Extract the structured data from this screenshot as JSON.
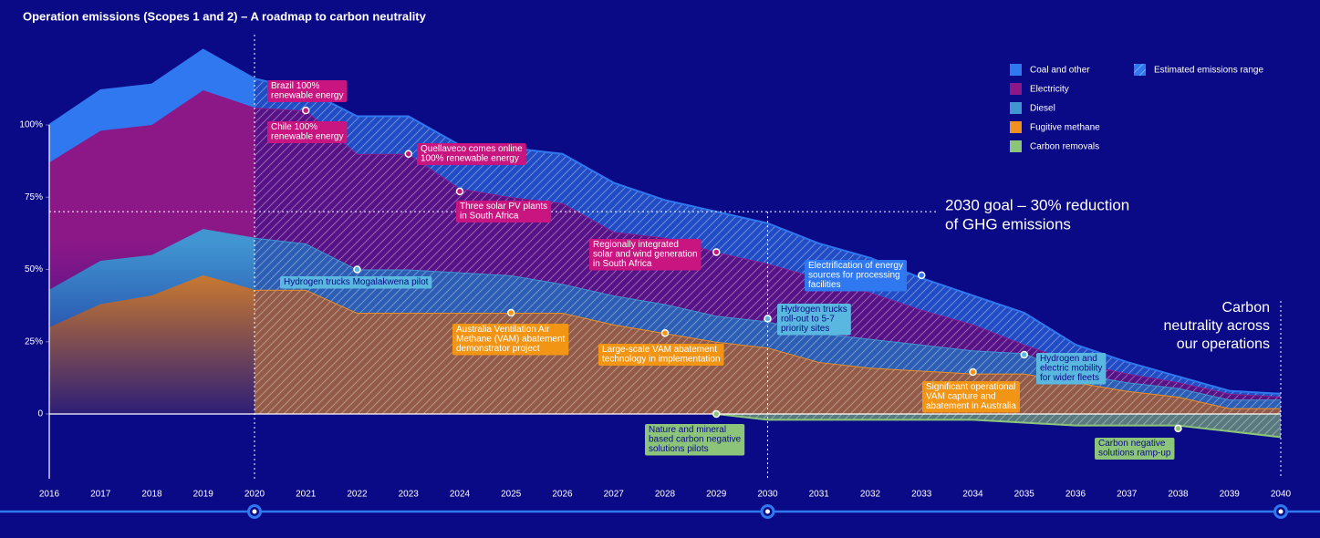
{
  "chart_data": {
    "type": "stacked-area",
    "title": "Operation emissions (Scopes 1 and 2) – A roadmap to carbon neutrality",
    "categories": [
      "2016",
      "2017",
      "2018",
      "2019",
      "2020",
      "2021",
      "2022",
      "2023",
      "2024",
      "2025",
      "2026",
      "2027",
      "2028",
      "2029",
      "2030",
      "2031",
      "2032",
      "2033",
      "2034",
      "2035",
      "2036",
      "2037",
      "2038",
      "2039",
      "2040"
    ],
    "series": [
      {
        "name": "Fugitive methane",
        "color": "#f0901e",
        "values": [
          30,
          38,
          41,
          48,
          43,
          43,
          35,
          35,
          35,
          35,
          35,
          31,
          28,
          25,
          23,
          18,
          16,
          15,
          14,
          14,
          11,
          8,
          6,
          2,
          2
        ]
      },
      {
        "name": "Diesel",
        "color": "#4196d2",
        "values": [
          13,
          15,
          14,
          16,
          18,
          16,
          15,
          15,
          14,
          13,
          10,
          10,
          10,
          9,
          9,
          10,
          10,
          9,
          8,
          7,
          3,
          3,
          3,
          3,
          3
        ]
      },
      {
        "name": "Electricity",
        "color": "#8c1888",
        "values": [
          44,
          45,
          45,
          48,
          45,
          46,
          40,
          40,
          29,
          27,
          28,
          22,
          23,
          22,
          20,
          19,
          16,
          12,
          9,
          3,
          4,
          3,
          2,
          2,
          1
        ]
      },
      {
        "name": "Coal and other",
        "color": "#2f78f0",
        "values": [
          13,
          14,
          14,
          14,
          10,
          7,
          13,
          13,
          15,
          17,
          17,
          17,
          13,
          14,
          14,
          12,
          12,
          11,
          10,
          11,
          6,
          4,
          2,
          1,
          1
        ]
      },
      {
        "name": "Carbon removals",
        "color": "#8cc57a",
        "values": [
          null,
          null,
          null,
          null,
          null,
          null,
          null,
          null,
          null,
          null,
          null,
          null,
          null,
          0,
          -2,
          -2,
          -2,
          -2,
          -2,
          -3,
          -4,
          -4,
          -4,
          -6,
          -8
        ]
      }
    ],
    "legend_order": [
      3,
      2,
      1,
      0,
      4
    ],
    "estimate_label": "Estimated emissions range",
    "estimated_from": "2020",
    "milestones": [
      "2020",
      "2030",
      "2040"
    ],
    "ylim": [
      -22,
      132
    ],
    "yticks": [
      0,
      {
        "value": 25,
        "label": "25%"
      },
      {
        "value": 50,
        "label": "50%"
      },
      {
        "value": 75,
        "label": "75%"
      },
      {
        "value": 100,
        "label": "100%"
      }
    ],
    "goal": {
      "value": 70,
      "year": "2030",
      "text": [
        "2030 goal – 30% reduction",
        "of GHG emissions"
      ]
    },
    "neutrality": {
      "year": "2040",
      "text": [
        "Carbon",
        "neutrality across",
        "our operations"
      ]
    },
    "annotations": [
      {
        "text": [
          "Brazil 100%",
          "renewable energy"
        ],
        "color": "#c8157f",
        "text_color": "#ffffff"
      },
      {
        "text": [
          "Chile 100%",
          "renewable energy"
        ],
        "x": "2021",
        "y": 105,
        "color": "#c8157f",
        "text_color": "#ffffff"
      },
      {
        "text": [
          "Quellaveco comes online",
          "100% renewable energy"
        ],
        "x": "2023",
        "y": 90,
        "color": "#c8157f",
        "text_color": "#ffffff"
      },
      {
        "text": [
          "Three solar PV plants",
          "in South Africa"
        ],
        "x": "2024",
        "y": 77,
        "color": "#c8157f",
        "text_color": "#ffffff"
      },
      {
        "text": [
          "Regionally integrated",
          "solar and wind generation",
          "in South Africa"
        ],
        "x": "2029",
        "y": 56,
        "color": "#c8157f",
        "text_color": "#ffffff"
      },
      {
        "text": [
          "Hydrogen trucks Mogalakwena pilot"
        ],
        "x": "2022",
        "y": 50,
        "color": "#5ab8e0",
        "text_color": "#0b0a86"
      },
      {
        "text": [
          "Australia Ventilation Air",
          "Methane (VAM) abatement",
          "demonstrator project"
        ],
        "x": "2025",
        "y": 35,
        "color": "#f39514",
        "text_color": "#ffffff"
      },
      {
        "text": [
          "Large-scale VAM abatement",
          "technology in implementation"
        ],
        "x": "2028",
        "y": 28,
        "color": "#f39514",
        "text_color": "#ffffff"
      },
      {
        "text": [
          "Hydrogen trucks",
          "roll-out to 5-7",
          "priority sites"
        ],
        "x": "2030",
        "y": 33,
        "color": "#5ab8e0",
        "text_color": "#0b0a86"
      },
      {
        "text": [
          "Electrification of energy",
          "sources for processing",
          "facilities"
        ],
        "x": "2033",
        "y": 48,
        "color": "#2f78f0",
        "text_color": "#ffffff"
      },
      {
        "text": [
          "Hydrogen and",
          "electric mobility",
          "for wider fleets"
        ],
        "x": "2035",
        "y": 20.5,
        "color": "#5ab8e0",
        "text_color": "#0b0a86"
      },
      {
        "text": [
          "Significant operational",
          "VAM capture and",
          "abatement in Australia"
        ],
        "x": "2034",
        "y": 14.5,
        "color": "#f39514",
        "text_color": "#ffffff"
      },
      {
        "text": [
          "Nature and mineral",
          "based carbon negative",
          "solutions pilots"
        ],
        "x": "2029",
        "y": 0,
        "color": "#8cc57a",
        "text_color": "#0b0a86"
      },
      {
        "text": [
          "Carbon negative",
          "solutions ramp-up"
        ],
        "x": "2038",
        "y": -5,
        "color": "#8cc57a",
        "text_color": "#0b0a86"
      }
    ]
  }
}
